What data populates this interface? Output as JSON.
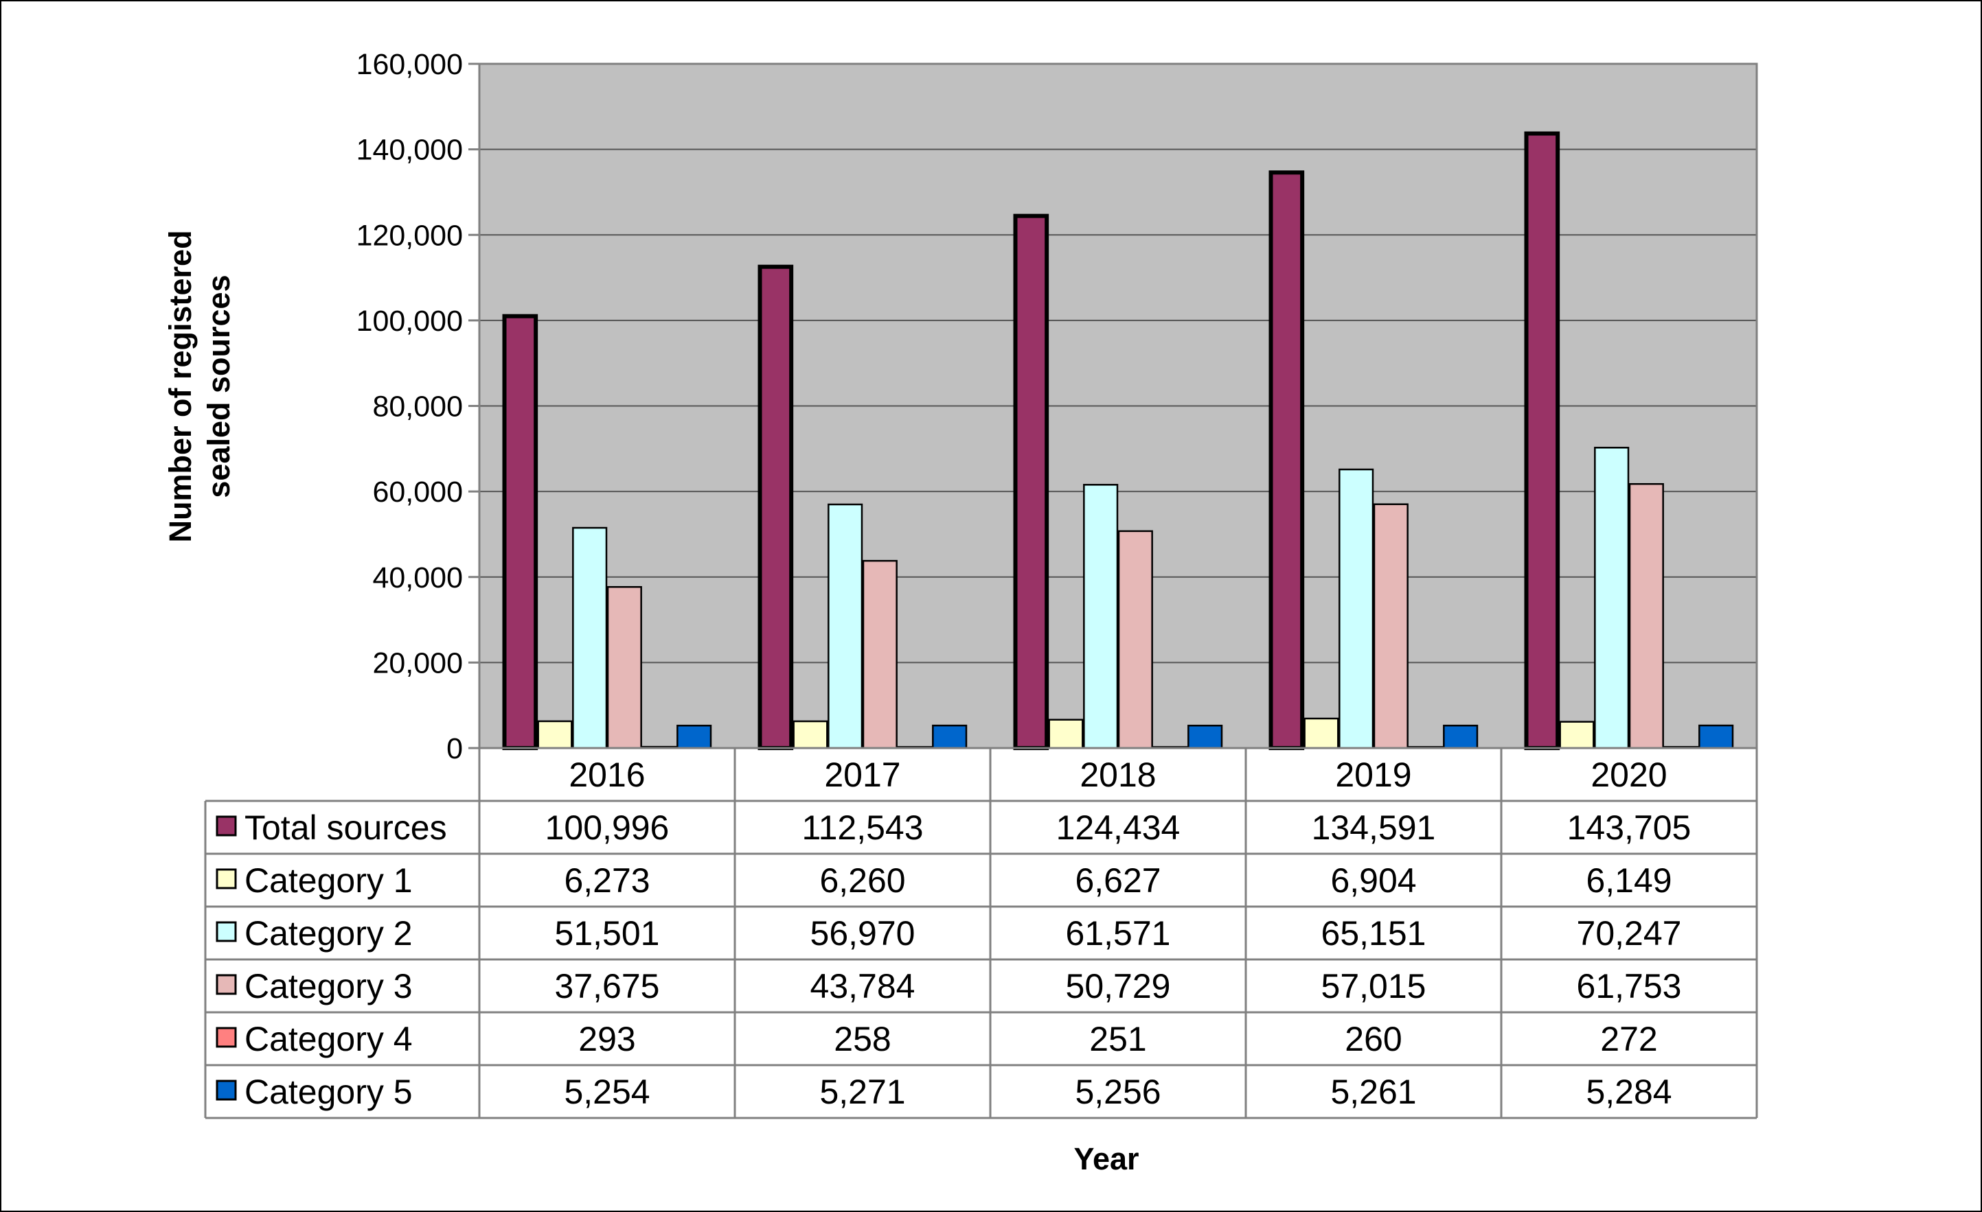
{
  "chart_data": {
    "type": "bar",
    "categories": [
      "2016",
      "2017",
      "2018",
      "2019",
      "2020"
    ],
    "series": [
      {
        "name": "Total sources",
        "values": [
          100996,
          112543,
          124434,
          134591,
          143705
        ],
        "labels": [
          "100,996",
          "112,543",
          "124,434",
          "134,591",
          "143,705"
        ],
        "color": "#993366"
      },
      {
        "name": "Category 1",
        "values": [
          6273,
          6260,
          6627,
          6904,
          6149
        ],
        "labels": [
          "6,273",
          "6,260",
          "6,627",
          "6,904",
          "6,149"
        ],
        "color": "#FFFFCC"
      },
      {
        "name": "Category 2",
        "values": [
          51501,
          56970,
          61571,
          65151,
          70247
        ],
        "labels": [
          "51,501",
          "56,970",
          "61,571",
          "65,151",
          "70,247"
        ],
        "color": "#CCFFFF"
      },
      {
        "name": "Category 3",
        "values": [
          37675,
          43784,
          50729,
          57015,
          61753
        ],
        "labels": [
          "37,675",
          "43,784",
          "50,729",
          "57,015",
          "61,753"
        ],
        "color": "#E6B8B7"
      },
      {
        "name": "Category 4",
        "values": [
          293,
          258,
          251,
          260,
          272
        ],
        "labels": [
          "293",
          "258",
          "251",
          "260",
          "272"
        ],
        "color": "#FF8080"
      },
      {
        "name": "Category 5",
        "values": [
          5254,
          5271,
          5256,
          5261,
          5284
        ],
        "labels": [
          "5,254",
          "5,271",
          "5,256",
          "5,261",
          "5,284"
        ],
        "color": "#0066CC"
      }
    ],
    "ylabel_lines": [
      "Number of registered",
      "sealed sources"
    ],
    "xlabel": "Year",
    "ylim": [
      0,
      160000
    ],
    "ytick_values": [
      0,
      20000,
      40000,
      60000,
      80000,
      100000,
      120000,
      140000,
      160000
    ],
    "ytick_labels": [
      "0",
      "20,000",
      "40,000",
      "60,000",
      "80,000",
      "100,000",
      "120,000",
      "140,000",
      "160,000"
    ],
    "grid": true,
    "plot_background": "#C0C0C0",
    "legend": "data table below the chart"
  }
}
